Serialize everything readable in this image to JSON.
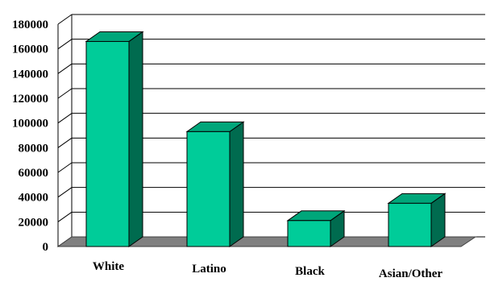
{
  "chart_data": {
    "type": "bar",
    "title": "",
    "xlabel": "",
    "ylabel": "",
    "categories": [
      "White",
      "Latino",
      "Black",
      "Asian/Other"
    ],
    "values": [
      166000,
      93000,
      21000,
      35000
    ],
    "ylim": [
      0,
      180000
    ],
    "yticks": [
      0,
      20000,
      40000,
      60000,
      80000,
      100000,
      120000,
      140000,
      160000,
      180000
    ],
    "grid": true,
    "legend": "none",
    "style": "3d",
    "colors": {
      "bar_front": "#00cc99",
      "bar_top": "#00a67a",
      "bar_side": "#006b4f",
      "floor": "#808080",
      "grid": "#000000"
    }
  }
}
